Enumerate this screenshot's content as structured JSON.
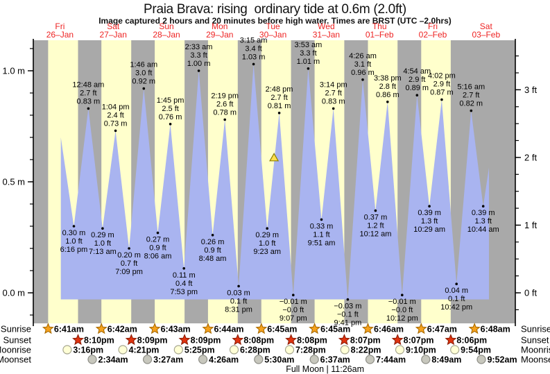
{
  "title": "Praia Brava: rising  ordinary tide at 0.6m (2.0ft)",
  "subtitle": "Image captured 2 hours and 20 minutes before high water. Times are BRST (UTC –2.0hrs)",
  "colors": {
    "day_band": "#ffffcc",
    "night_band": "#a9a9a9",
    "tide_fill": "#a9b4f0",
    "date_red": "#ee2222",
    "text": "#000000",
    "sunrise_star": "#f6a21d",
    "sunrise_star_edge": "#a86a00",
    "sunset_star": "#e0330f",
    "sunset_star_edge": "#8f1d05",
    "moonrise_circle": "#ffffd6",
    "moonrise_circle_edge": "#a6a68f",
    "moonset_circle": "#c7c7bd",
    "moonset_circle_edge": "#8c8c85",
    "current_marker": "#ffdf4d",
    "current_marker_edge": "#8a8000"
  },
  "row_labels": {
    "sunrise": "Sunrise",
    "sunset": "Sunset",
    "moonrise": "Moonrise",
    "moonset": "Moonset"
  },
  "chart_data": {
    "type": "area",
    "title": "Praia Brava: rising ordinary tide at 0.6m (2.0ft)",
    "x_axis": {
      "unit": "days",
      "span_days": 9.05,
      "grid": false
    },
    "y_axis_m": {
      "label_unit": "m",
      "ticks": [
        0.0,
        0.5,
        1.0
      ],
      "tick_labels": [
        "0.0 m",
        "0.5 m",
        "1.0 m"
      ],
      "minor_step": 0.1,
      "range": [
        -0.14,
        1.13
      ]
    },
    "y_axis_ft": {
      "label_unit": "ft",
      "ticks": [
        0,
        1,
        2,
        3
      ],
      "tick_labels": [
        "0 ft",
        "1 ft",
        "2 ft",
        "3 ft"
      ],
      "minor_step": 0.25
    },
    "days": [
      {
        "weekday": "Fri",
        "date": "26–Jan"
      },
      {
        "weekday": "Sat",
        "date": "27–Jan"
      },
      {
        "weekday": "Sun",
        "date": "28–Jan"
      },
      {
        "weekday": "Mon",
        "date": "29–Jan"
      },
      {
        "weekday": "Tue",
        "date": "30–Jan"
      },
      {
        "weekday": "Wed",
        "date": "31–Jan"
      },
      {
        "weekday": "Thu",
        "date": "01–Feb"
      },
      {
        "weekday": "Fri",
        "date": "02–Feb"
      },
      {
        "weekday": "Sat",
        "date": "03–Feb"
      }
    ],
    "tide_events": [
      {
        "day": 0,
        "hour": 12.4,
        "height_m": 0.7,
        "type": "high",
        "labeled": false
      },
      {
        "day": 0,
        "time": "6:16 pm",
        "height_m": 0.3,
        "m": "0.30",
        "ft": "1.0",
        "type": "low",
        "labeled": true
      },
      {
        "day": 1,
        "time": "12:48 am",
        "height_m": 0.83,
        "m": "0.83",
        "ft": "2.7",
        "type": "high",
        "labeled": true
      },
      {
        "day": 1,
        "time": "7:13 am",
        "height_m": 0.29,
        "m": "0.29",
        "ft": "1.0",
        "type": "low",
        "labeled": true
      },
      {
        "day": 1,
        "time": "1:04 pm",
        "height_m": 0.73,
        "m": "0.73",
        "ft": "2.4",
        "type": "high",
        "labeled": true
      },
      {
        "day": 1,
        "time": "7:09 pm",
        "height_m": 0.2,
        "m": "0.20",
        "ft": "0.7",
        "type": "low",
        "labeled": true
      },
      {
        "day": 2,
        "time": "1:46 am",
        "height_m": 0.92,
        "m": "0.92",
        "ft": "3.0",
        "type": "high",
        "labeled": true
      },
      {
        "day": 2,
        "time": "8:06 am",
        "height_m": 0.27,
        "m": "0.27",
        "ft": "0.9",
        "type": "low",
        "labeled": true
      },
      {
        "day": 2,
        "time": "1:45 pm",
        "height_m": 0.76,
        "m": "0.76",
        "ft": "2.5",
        "type": "high",
        "labeled": true
      },
      {
        "day": 2,
        "time": "7:53 pm",
        "height_m": 0.11,
        "m": "0.11",
        "ft": "0.4",
        "type": "low",
        "labeled": true
      },
      {
        "day": 3,
        "time": "2:33 am",
        "height_m": 1.0,
        "m": "1.00",
        "ft": "3.3",
        "type": "high",
        "labeled": true
      },
      {
        "day": 3,
        "time": "8:48 am",
        "height_m": 0.26,
        "m": "0.26",
        "ft": "0.9",
        "type": "low",
        "labeled": true
      },
      {
        "day": 3,
        "time": "2:19 pm",
        "height_m": 0.78,
        "m": "0.78",
        "ft": "2.6",
        "type": "high",
        "labeled": true
      },
      {
        "day": 3,
        "time": "8:31 pm",
        "height_m": 0.03,
        "m": "0.03",
        "ft": "0.1",
        "type": "low",
        "labeled": true
      },
      {
        "day": 4,
        "time": "3:15 am",
        "height_m": 1.03,
        "m": "1.03",
        "ft": "3.4",
        "type": "high",
        "labeled": true
      },
      {
        "day": 4,
        "time": "9:23 am",
        "height_m": 0.29,
        "m": "0.29",
        "ft": "1.0",
        "type": "low",
        "labeled": true
      },
      {
        "day": 4,
        "time": "2:48 pm",
        "height_m": 0.81,
        "m": "0.81",
        "ft": "2.7",
        "type": "high",
        "labeled": true
      },
      {
        "day": 4,
        "time": "9:07 pm",
        "height_m": -0.01,
        "m": "−0.01",
        "ft": "−0.0",
        "type": "low",
        "labeled": true
      },
      {
        "day": 5,
        "time": "3:53 am",
        "height_m": 1.01,
        "m": "1.01",
        "ft": "3.3",
        "type": "high",
        "labeled": true
      },
      {
        "day": 5,
        "time": "9:51 am",
        "height_m": 0.33,
        "m": "0.33",
        "ft": "1.1",
        "type": "low",
        "labeled": true
      },
      {
        "day": 5,
        "time": "3:14 pm",
        "height_m": 0.83,
        "m": "0.83",
        "ft": "2.7",
        "type": "high",
        "labeled": true
      },
      {
        "day": 5,
        "time": "9:41 pm",
        "height_m": -0.03,
        "m": "−0.03",
        "ft": "−0.1",
        "type": "low",
        "labeled": true
      },
      {
        "day": 6,
        "time": "4:26 am",
        "height_m": 0.96,
        "m": "0.96",
        "ft": "3.1",
        "type": "high",
        "labeled": true
      },
      {
        "day": 6,
        "time": "10:12 am",
        "height_m": 0.37,
        "m": "0.37",
        "ft": "1.2",
        "type": "low",
        "labeled": true
      },
      {
        "day": 6,
        "time": "3:38 pm",
        "height_m": 0.86,
        "m": "0.86",
        "ft": "2.8",
        "type": "high",
        "labeled": true
      },
      {
        "day": 6,
        "time": "10:12 pm",
        "height_m": -0.01,
        "m": "−0.01",
        "ft": "−0.0",
        "type": "low",
        "labeled": true
      },
      {
        "day": 7,
        "time": "4:54 am",
        "height_m": 0.89,
        "m": "0.89",
        "ft": "2.9",
        "type": "high",
        "labeled": true
      },
      {
        "day": 7,
        "time": "10:29 am",
        "height_m": 0.39,
        "m": "0.39",
        "ft": "1.3",
        "type": "low",
        "labeled": true
      },
      {
        "day": 7,
        "time": "4:02 pm",
        "height_m": 0.87,
        "m": "0.87",
        "ft": "2.9",
        "type": "high",
        "labeled": true
      },
      {
        "day": 7,
        "time": "10:42 pm",
        "height_m": 0.04,
        "m": "0.04",
        "ft": "0.1",
        "type": "low",
        "labeled": true
      },
      {
        "day": 8,
        "time": "5:16 am",
        "height_m": 0.82,
        "m": "0.82",
        "ft": "2.7",
        "type": "high",
        "labeled": true
      },
      {
        "day": 8,
        "time": "10:44 am",
        "height_m": 0.39,
        "m": "0.39",
        "ft": "1.3",
        "type": "low",
        "labeled": true
      },
      {
        "day": 8,
        "hour": 17.6,
        "height_m": 0.85,
        "type": "high",
        "labeled": false
      }
    ],
    "current_tide_marker": {
      "day": 4,
      "hour": 12.47,
      "height_m": 0.61
    },
    "astronomy": {
      "sunrise": [
        {
          "day": 0,
          "time": "6:41am"
        },
        {
          "day": 1,
          "time": "6:42am"
        },
        {
          "day": 2,
          "time": "6:43am"
        },
        {
          "day": 3,
          "time": "6:44am"
        },
        {
          "day": 4,
          "time": "6:45am"
        },
        {
          "day": 5,
          "time": "6:45am"
        },
        {
          "day": 6,
          "time": "6:46am"
        },
        {
          "day": 7,
          "time": "6:47am"
        },
        {
          "day": 8,
          "time": "6:48am"
        }
      ],
      "sunset": [
        {
          "day": 0,
          "time": "8:10pm"
        },
        {
          "day": 1,
          "time": "8:09pm"
        },
        {
          "day": 2,
          "time": "8:09pm"
        },
        {
          "day": 3,
          "time": "8:08pm"
        },
        {
          "day": 4,
          "time": "8:08pm"
        },
        {
          "day": 5,
          "time": "8:07pm"
        },
        {
          "day": 6,
          "time": "8:07pm"
        },
        {
          "day": 7,
          "time": "8:06pm"
        }
      ],
      "moonrise": [
        {
          "day": 0,
          "time": "3:16pm"
        },
        {
          "day": 1,
          "time": "4:21pm"
        },
        {
          "day": 2,
          "time": "5:25pm"
        },
        {
          "day": 3,
          "time": "6:28pm"
        },
        {
          "day": 4,
          "time": "7:28pm"
        },
        {
          "day": 5,
          "time": "8:22pm"
        },
        {
          "day": 6,
          "time": "9:10pm"
        },
        {
          "day": 7,
          "time": "9:54pm"
        }
      ],
      "moonset": [
        {
          "day": 1,
          "time": "2:34am"
        },
        {
          "day": 2,
          "time": "3:27am"
        },
        {
          "day": 3,
          "time": "4:26am"
        },
        {
          "day": 4,
          "time": "5:30am"
        },
        {
          "day": 5,
          "time": "6:37am"
        },
        {
          "day": 6,
          "time": "7:44am"
        },
        {
          "day": 7,
          "time": "8:49am"
        },
        {
          "day": 8,
          "time": "9:52am"
        }
      ]
    },
    "full_moon": {
      "label": "Full Moon",
      "time": "11:26am",
      "day": 5
    }
  }
}
